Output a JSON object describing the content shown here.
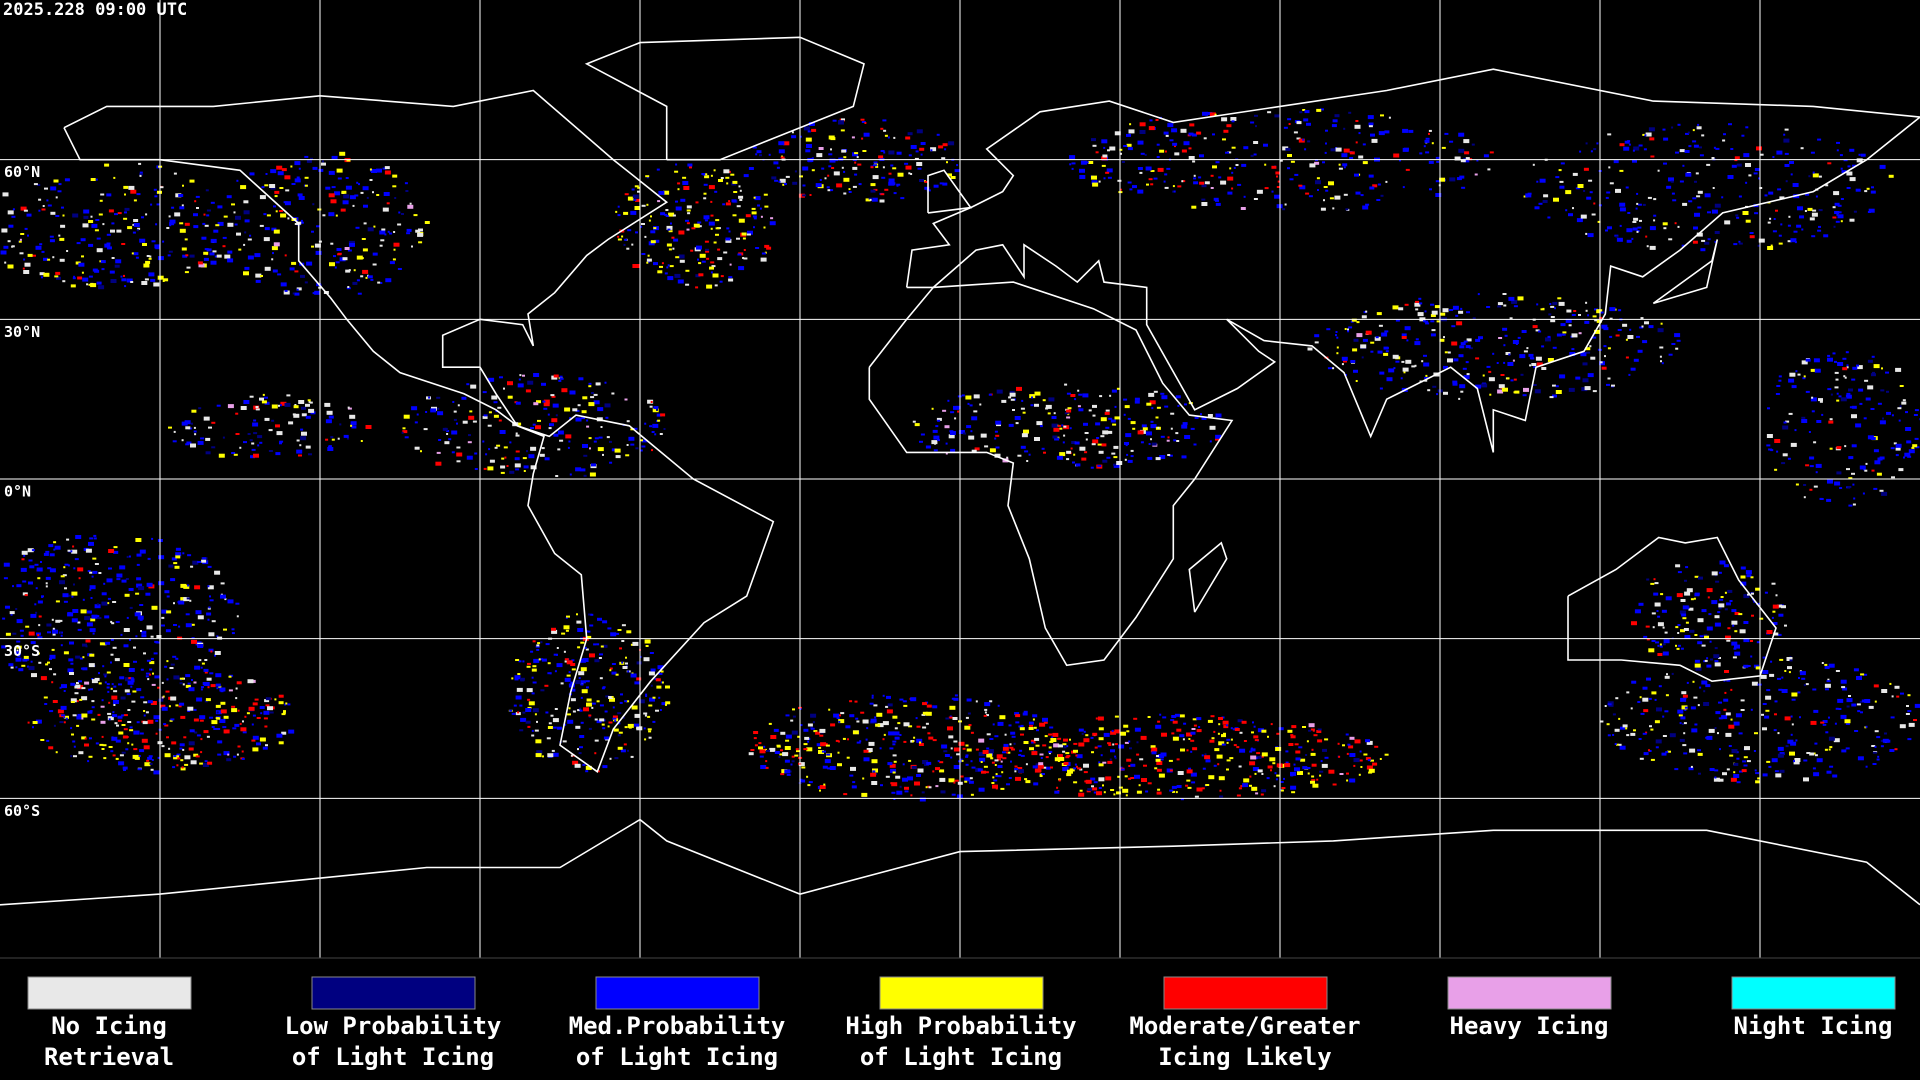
{
  "header": {
    "timestamp": "2025.228 09:00 UTC"
  },
  "latitude_labels": [
    "60°N",
    "30°N",
    "0°N",
    "30°S",
    "60°S"
  ],
  "legend": {
    "items": [
      {
        "lines": [
          "No Icing",
          "Retrieval"
        ],
        "color": "#e8e8e8"
      },
      {
        "lines": [
          "Low Probability",
          "of Light Icing"
        ],
        "color": "#000080"
      },
      {
        "lines": [
          "Med.Probability",
          "of Light Icing"
        ],
        "color": "#0000ff"
      },
      {
        "lines": [
          "High Probability",
          "of Light Icing"
        ],
        "color": "#ffff00"
      },
      {
        "lines": [
          "Moderate/Greater",
          "Icing Likely"
        ],
        "color": "#ff0000"
      },
      {
        "lines": [
          "Heavy Icing"
        ],
        "color": "#e8a0e8"
      },
      {
        "lines": [
          "Night Icing"
        ],
        "color": "#00ffff"
      }
    ]
  }
}
